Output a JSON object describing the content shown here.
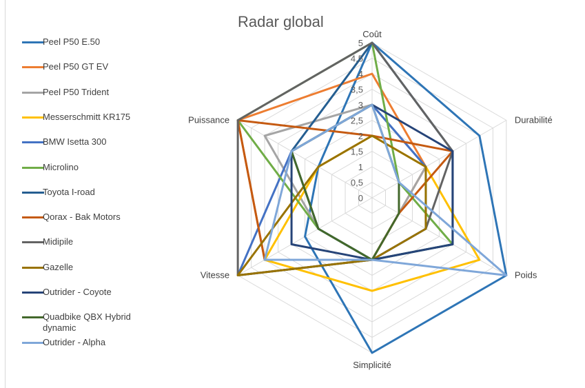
{
  "chart_data": {
    "type": "radar",
    "title": "Radar global",
    "axes": [
      "Coût",
      "Durabilité",
      "Poids",
      "Simplicité",
      "Vitesse",
      "Puissance"
    ],
    "rlim": [
      0,
      5
    ],
    "ticks": [
      "0",
      "0,5",
      "1",
      "1,5",
      "2",
      "2,5",
      "3",
      "3,5",
      "4",
      "4,5",
      "5"
    ],
    "grid": true,
    "legend_position": "left",
    "series": [
      {
        "name": "Peel P50 E.50",
        "color": "#2e75b6",
        "values": [
          5,
          4,
          5,
          5,
          2.5,
          2
        ]
      },
      {
        "name": "Peel P50 GT EV",
        "color": "#ed7d31",
        "values": [
          4,
          2,
          1,
          2,
          4,
          5
        ]
      },
      {
        "name": "Peel P50 Trident",
        "color": "#a5a5a5",
        "values": [
          3,
          2,
          1,
          2,
          2,
          4
        ]
      },
      {
        "name": "Messerschmitt KR175",
        "color": "#ffc000",
        "values": [
          2,
          2,
          4,
          3,
          4,
          2
        ]
      },
      {
        "name": "BMW Isetta 300",
        "color": "#4472c4",
        "values": [
          3,
          2,
          2,
          2,
          5,
          3
        ]
      },
      {
        "name": "Microlino",
        "color": "#70ad47",
        "values": [
          5,
          1,
          3,
          2,
          2,
          5
        ]
      },
      {
        "name": "Toyota I-road",
        "color": "#255e91",
        "values": [
          5,
          3,
          3,
          2,
          2,
          3
        ]
      },
      {
        "name": "Qorax - Bak Motors",
        "color": "#c55a11",
        "values": [
          2,
          3,
          1,
          2,
          4,
          5
        ]
      },
      {
        "name": "Midipile",
        "color": "#636363",
        "values": [
          5,
          3,
          2,
          2,
          5,
          5
        ]
      },
      {
        "name": "Gazelle",
        "color": "#997300",
        "values": [
          2,
          2,
          2,
          2,
          5,
          2
        ]
      },
      {
        "name": "Outrider - Coyote",
        "color": "#264478",
        "values": [
          3,
          3,
          3,
          2,
          3,
          3
        ]
      },
      {
        "name": "Quadbike QBX Hybrid dynamic",
        "color": "#43682b",
        "values": [
          3,
          1,
          1,
          2,
          2,
          3
        ]
      },
      {
        "name": "Outrider - Alpha",
        "color": "#7fa7d9",
        "values": [
          3,
          1,
          5,
          2,
          4,
          3
        ]
      }
    ]
  }
}
